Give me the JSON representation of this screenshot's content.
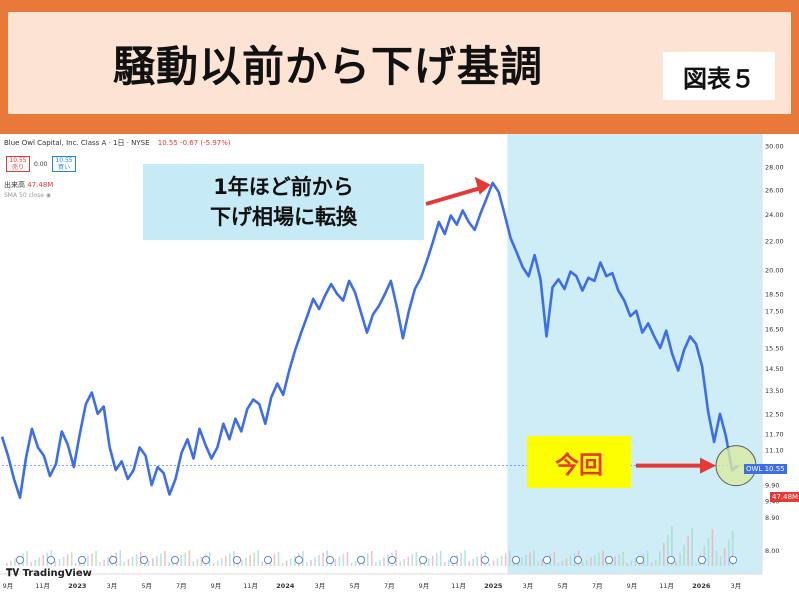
{
  "header": {
    "title": "騒動以前から下げ基調",
    "figure_label": "図表５"
  },
  "tv": {
    "symbol_line": "Blue Owl Capital, Inc. Class A · 1日 · NYSE",
    "price": "10.55",
    "change": "-0.67 (-5.97%)",
    "sell_price": "10.55",
    "sell_label": "売り",
    "spread": "0.00",
    "buy_price": "10.55",
    "buy_label": "買い",
    "volume_label": "出来高",
    "volume_value": "47.48M",
    "sma_label": "SMA 50 close",
    "logo": "TradingView",
    "ticker_tag": "OWL",
    "price_tag": "10.55",
    "volume_tag": "47.48M"
  },
  "annotations": {
    "callout_line1": "1年ほど前から",
    "callout_line2": "下げ相場に転換",
    "now_label": "今回"
  },
  "colors": {
    "line": "#3d6ee8",
    "highlight": "#c6eaf6",
    "arrow": "#e53935",
    "now_bg": "#fefe03",
    "circle": "#d8eaa0"
  },
  "chart_data": {
    "type": "line",
    "title": "",
    "xlabel": "",
    "ylabel": "",
    "y_scale": "log",
    "ylim": [
      7.6,
      30.0
    ],
    "y_ticks": [
      8.0,
      8.9,
      9.4,
      9.9,
      11.1,
      11.7,
      12.5,
      13.5,
      14.5,
      15.5,
      16.5,
      17.5,
      18.5,
      20.0,
      22.0,
      24.0,
      26.0,
      28.0,
      30.0
    ],
    "x_ticks": [
      "9月",
      "11月",
      "2023",
      "3月",
      "5月",
      "7月",
      "9月",
      "11月",
      "2024",
      "3月",
      "5月",
      "7月",
      "9月",
      "11月",
      "2025",
      "3月",
      "5月",
      "7月",
      "9月",
      "11月",
      "2026",
      "3月"
    ],
    "series": [
      {
        "values": [
          11.6,
          10.9,
          10.1,
          9.5,
          10.8,
          11.9,
          11.2,
          10.9,
          10.2,
          10.6,
          11.8,
          11.3,
          10.5,
          11.7,
          12.9,
          13.4,
          12.5,
          12.8,
          11.2,
          10.4,
          10.7,
          10.1,
          10.4,
          11.2,
          10.9,
          9.9,
          10.5,
          10.3,
          9.6,
          10.1,
          11.0,
          11.5,
          10.8,
          11.9,
          11.3,
          10.8,
          11.2,
          12.1,
          11.5,
          12.3,
          11.8,
          12.7,
          13.1,
          12.9,
          12.1,
          13.2,
          13.8,
          13.3,
          14.4,
          15.4,
          16.3,
          17.2,
          18.2,
          17.6,
          18.4,
          19.1,
          18.5,
          18.1,
          19.3,
          18.6,
          17.4,
          16.3,
          17.3,
          17.8,
          18.5,
          19.3,
          17.7,
          16.0,
          17.5,
          18.8,
          19.5,
          20.6,
          21.9,
          23.4,
          22.5,
          23.9,
          23.2,
          24.3,
          23.4,
          22.8,
          24.1,
          25.3,
          26.6,
          25.8,
          24.0,
          22.2,
          21.2,
          20.2,
          19.6,
          21.0,
          19.4,
          16.1,
          18.9,
          19.4,
          18.8,
          19.9,
          19.6,
          18.7,
          19.5,
          19.3,
          20.5,
          19.6,
          19.8,
          18.7,
          18.1,
          17.2,
          17.5,
          16.3,
          16.8,
          16.1,
          15.5,
          16.4,
          15.2,
          14.4,
          15.4,
          16.1,
          15.7,
          14.6,
          12.6,
          11.4,
          12.5,
          11.6,
          10.4,
          10.55
        ]
      }
    ],
    "annotations": [
      "1年ほど前から 下げ相場に転換",
      "今回"
    ],
    "legend": "none",
    "grid": false
  }
}
